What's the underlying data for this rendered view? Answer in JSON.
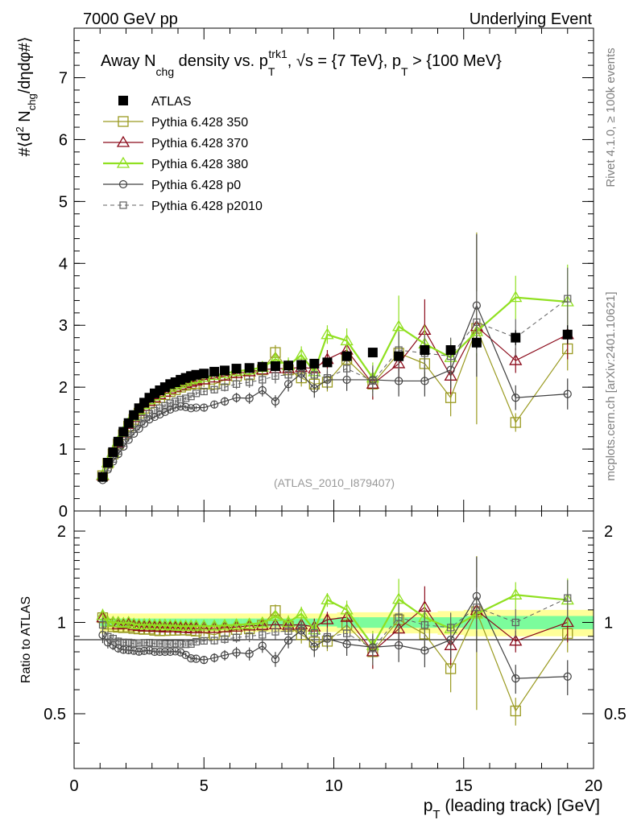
{
  "header": {
    "left": "7000 GeV pp",
    "right": "Underlying Event"
  },
  "side_labels": {
    "rivet": "Rivet 4.1.0, ≥ 100k events",
    "mcplots": "mcplots.cern.ch [arXiv:2401.10621]"
  },
  "watermark": "(ATLAS_2010_I879407)",
  "colors": {
    "atlas": "#000000",
    "p350": "#9a9a20",
    "p370": "#8b0a1a",
    "p380": "#90e020",
    "p0": "#404040",
    "p2010": "#606060",
    "band_yellow": "#ffff99",
    "band_green": "#7cfc9c"
  },
  "chart_data": [
    {
      "type": "scatter",
      "panel": "main",
      "title": "Away N_chg density vs. p_T^trk1, √s = {7 TeV}, p_T > {100 MeV}",
      "title_parts": {
        "a": "Away N",
        "a_sub": "chg",
        "b": " density vs. p",
        "b_sub": "T",
        "b_sup": "trk1",
        "c": ", √s = {7 TeV}, p",
        "c_sub": "T",
        "d": " > {100 MeV}"
      },
      "ylabel": "#⟨d² N_chg/dηdφ#⟩",
      "ylabel_parts": {
        "a": "#⟨d",
        "a_sup": "2",
        "b": " N",
        "b_sub": "chg",
        "c": "/dηdφ#⟩"
      },
      "xlim": [
        0,
        20
      ],
      "ylim": [
        0,
        7.8
      ],
      "yticks": [
        0,
        1,
        2,
        3,
        4,
        5,
        6,
        7
      ],
      "ytick_labels": [
        "0",
        "1",
        "2",
        "3",
        "4",
        "5",
        "6",
        "7"
      ],
      "x": [
        1.1,
        1.3,
        1.5,
        1.7,
        1.9,
        2.1,
        2.3,
        2.5,
        2.7,
        2.9,
        3.1,
        3.3,
        3.5,
        3.7,
        3.9,
        4.1,
        4.3,
        4.5,
        4.7,
        5.0,
        5.4,
        5.8,
        6.25,
        6.75,
        7.25,
        7.75,
        8.25,
        8.75,
        9.25,
        9.75,
        10.5,
        11.5,
        12.5,
        13.5,
        14.5,
        15.5,
        17.0,
        19.0
      ],
      "series": [
        {
          "name": "ATLAS",
          "key": "atlas",
          "marker": "filled-square",
          "line": "none",
          "values": [
            0.55,
            0.78,
            0.95,
            1.12,
            1.28,
            1.42,
            1.55,
            1.66,
            1.75,
            1.83,
            1.9,
            1.95,
            2.0,
            2.05,
            2.08,
            2.12,
            2.15,
            2.18,
            2.2,
            2.22,
            2.25,
            2.27,
            2.3,
            2.31,
            2.33,
            2.34,
            2.35,
            2.36,
            2.38,
            2.4,
            2.5,
            2.56,
            2.5,
            2.6,
            2.6,
            2.72,
            2.8,
            2.85
          ],
          "errors": [
            0.03,
            0.03,
            0.03,
            0.03,
            0.03,
            0.03,
            0.03,
            0.03,
            0.03,
            0.03,
            0.03,
            0.03,
            0.03,
            0.03,
            0.03,
            0.03,
            0.03,
            0.03,
            0.03,
            0.03,
            0.03,
            0.03,
            0.03,
            0.03,
            0.03,
            0.03,
            0.03,
            0.03,
            0.03,
            0.03,
            0.04,
            0.05,
            0.06,
            0.07,
            0.08,
            0.1,
            0.12,
            0.15
          ]
        },
        {
          "name": "Pythia 6.428 350",
          "key": "p350",
          "marker": "open-square",
          "line": "solid",
          "values": [
            0.57,
            0.77,
            0.92,
            1.08,
            1.23,
            1.37,
            1.48,
            1.58,
            1.66,
            1.74,
            1.79,
            1.83,
            1.88,
            1.93,
            1.96,
            2.0,
            2.03,
            2.05,
            2.06,
            2.05,
            2.05,
            2.12,
            2.18,
            2.2,
            2.28,
            2.56,
            2.28,
            2.15,
            2.05,
            2.08,
            2.45,
            2.05,
            2.55,
            2.38,
            1.83,
            2.95,
            1.43,
            2.62
          ],
          "errors": [
            0.03,
            0.03,
            0.03,
            0.03,
            0.03,
            0.03,
            0.03,
            0.03,
            0.03,
            0.03,
            0.03,
            0.03,
            0.03,
            0.03,
            0.03,
            0.03,
            0.03,
            0.03,
            0.03,
            0.05,
            0.06,
            0.07,
            0.08,
            0.09,
            0.1,
            0.12,
            0.13,
            0.14,
            0.15,
            0.15,
            0.2,
            0.25,
            0.3,
            0.3,
            0.3,
            1.55,
            0.15,
            0.35
          ]
        },
        {
          "name": "Pythia 6.428 370",
          "key": "p370",
          "marker": "open-triangle",
          "line": "solid",
          "values": [
            0.57,
            0.78,
            0.95,
            1.1,
            1.26,
            1.4,
            1.51,
            1.61,
            1.69,
            1.77,
            1.83,
            1.88,
            1.92,
            1.97,
            2.0,
            2.03,
            2.06,
            2.08,
            2.1,
            2.12,
            2.15,
            2.18,
            2.22,
            2.25,
            2.28,
            2.3,
            2.3,
            2.32,
            2.3,
            2.45,
            2.6,
            2.05,
            2.38,
            2.92,
            2.18,
            2.98,
            2.43,
            2.85
          ],
          "errors": [
            0.03,
            0.03,
            0.03,
            0.03,
            0.03,
            0.03,
            0.03,
            0.03,
            0.03,
            0.03,
            0.03,
            0.03,
            0.03,
            0.03,
            0.03,
            0.03,
            0.03,
            0.03,
            0.03,
            0.05,
            0.06,
            0.07,
            0.08,
            0.09,
            0.1,
            0.12,
            0.13,
            0.14,
            0.15,
            0.15,
            0.2,
            0.25,
            0.3,
            0.5,
            0.3,
            0.4,
            0.2,
            0.4
          ]
        },
        {
          "name": "Pythia 6.428 380",
          "key": "p380",
          "marker": "open-triangle",
          "line": "solid-thick",
          "values": [
            0.58,
            0.78,
            0.95,
            1.12,
            1.27,
            1.42,
            1.53,
            1.63,
            1.72,
            1.8,
            1.86,
            1.91,
            1.96,
            2.0,
            2.03,
            2.06,
            2.09,
            2.12,
            2.14,
            2.16,
            2.19,
            2.22,
            2.26,
            2.28,
            2.32,
            2.45,
            2.35,
            2.52,
            2.25,
            2.85,
            2.75,
            2.15,
            2.98,
            2.7,
            2.48,
            2.9,
            3.45,
            3.38
          ],
          "errors": [
            0.03,
            0.03,
            0.03,
            0.03,
            0.03,
            0.03,
            0.03,
            0.03,
            0.03,
            0.03,
            0.03,
            0.03,
            0.03,
            0.03,
            0.03,
            0.03,
            0.03,
            0.03,
            0.03,
            0.05,
            0.06,
            0.07,
            0.08,
            0.09,
            0.1,
            0.12,
            0.13,
            0.14,
            0.15,
            0.15,
            0.2,
            0.25,
            0.5,
            0.3,
            0.3,
            0.4,
            0.35,
            0.6
          ]
        },
        {
          "name": "Pythia 6.428 p0",
          "key": "p0",
          "marker": "open-circle",
          "line": "solid",
          "values": [
            0.5,
            0.67,
            0.8,
            0.92,
            1.04,
            1.15,
            1.25,
            1.33,
            1.41,
            1.48,
            1.52,
            1.56,
            1.6,
            1.64,
            1.67,
            1.69,
            1.68,
            1.66,
            1.67,
            1.67,
            1.72,
            1.77,
            1.83,
            1.82,
            1.95,
            1.77,
            2.05,
            2.22,
            1.98,
            2.12,
            2.12,
            2.12,
            2.1,
            2.1,
            2.28,
            3.32,
            1.83,
            1.89
          ],
          "errors": [
            0.03,
            0.03,
            0.03,
            0.03,
            0.03,
            0.03,
            0.03,
            0.03,
            0.03,
            0.03,
            0.03,
            0.03,
            0.03,
            0.03,
            0.03,
            0.03,
            0.03,
            0.03,
            0.03,
            0.05,
            0.06,
            0.07,
            0.08,
            0.09,
            0.1,
            0.1,
            0.12,
            0.14,
            0.15,
            0.15,
            0.18,
            0.2,
            0.25,
            0.25,
            0.3,
            1.15,
            0.2,
            0.25
          ]
        },
        {
          "name": "Pythia 6.428 p2010",
          "key": "p2010",
          "marker": "open-square-small",
          "line": "dashed",
          "values": [
            0.54,
            0.7,
            0.84,
            0.97,
            1.1,
            1.22,
            1.32,
            1.42,
            1.5,
            1.57,
            1.62,
            1.66,
            1.7,
            1.74,
            1.77,
            1.8,
            1.82,
            1.85,
            1.9,
            1.93,
            1.96,
            2.0,
            2.05,
            2.08,
            2.12,
            2.18,
            2.2,
            2.25,
            2.2,
            2.15,
            2.3,
            2.1,
            2.6,
            2.55,
            2.5,
            3.05,
            2.8,
            3.43
          ],
          "errors": [
            0.03,
            0.03,
            0.03,
            0.03,
            0.03,
            0.03,
            0.03,
            0.03,
            0.03,
            0.03,
            0.03,
            0.03,
            0.03,
            0.03,
            0.03,
            0.03,
            0.03,
            0.03,
            0.03,
            0.05,
            0.06,
            0.07,
            0.08,
            0.09,
            0.1,
            0.12,
            0.13,
            0.14,
            0.15,
            0.15,
            0.2,
            0.25,
            0.3,
            0.3,
            0.3,
            0.5,
            0.3,
            0.5
          ]
        }
      ]
    },
    {
      "type": "scatter",
      "panel": "ratio",
      "ylabel": "Ratio to ATLAS",
      "xlabel": "p_T (leading track) [GeV]",
      "xlabel_parts": {
        "a": "p",
        "a_sub": "T",
        "b": " (leading track) [GeV]"
      },
      "xlim": [
        0,
        20
      ],
      "ylim": [
        0.33,
        2.33
      ],
      "yscale": "log",
      "yticks": [
        0.5,
        1,
        2
      ],
      "ytick_labels": [
        "0.5",
        "1",
        "2"
      ],
      "xticks": [
        0,
        5,
        10,
        15,
        20
      ],
      "xtick_labels": [
        "0",
        "5",
        "10",
        "15",
        "20"
      ],
      "band_green_halfwidth": [
        0.03,
        0.03,
        0.03,
        0.03,
        0.03,
        0.03,
        0.03,
        0.03,
        0.03,
        0.03,
        0.03,
        0.03,
        0.03,
        0.03,
        0.03,
        0.03,
        0.03,
        0.03,
        0.03,
        0.03,
        0.03,
        0.03,
        0.03,
        0.03,
        0.03,
        0.03,
        0.03,
        0.03,
        0.03,
        0.03,
        0.04,
        0.04,
        0.04,
        0.04,
        0.04,
        0.05,
        0.05,
        0.05
      ],
      "band_yellow_halfwidth": [
        0.08,
        0.07,
        0.07,
        0.07,
        0.07,
        0.07,
        0.07,
        0.07,
        0.07,
        0.07,
        0.07,
        0.07,
        0.07,
        0.07,
        0.07,
        0.07,
        0.07,
        0.07,
        0.07,
        0.07,
        0.07,
        0.07,
        0.07,
        0.07,
        0.07,
        0.07,
        0.07,
        0.07,
        0.07,
        0.07,
        0.08,
        0.08,
        0.08,
        0.08,
        0.09,
        0.1,
        0.1,
        0.1
      ]
    }
  ]
}
